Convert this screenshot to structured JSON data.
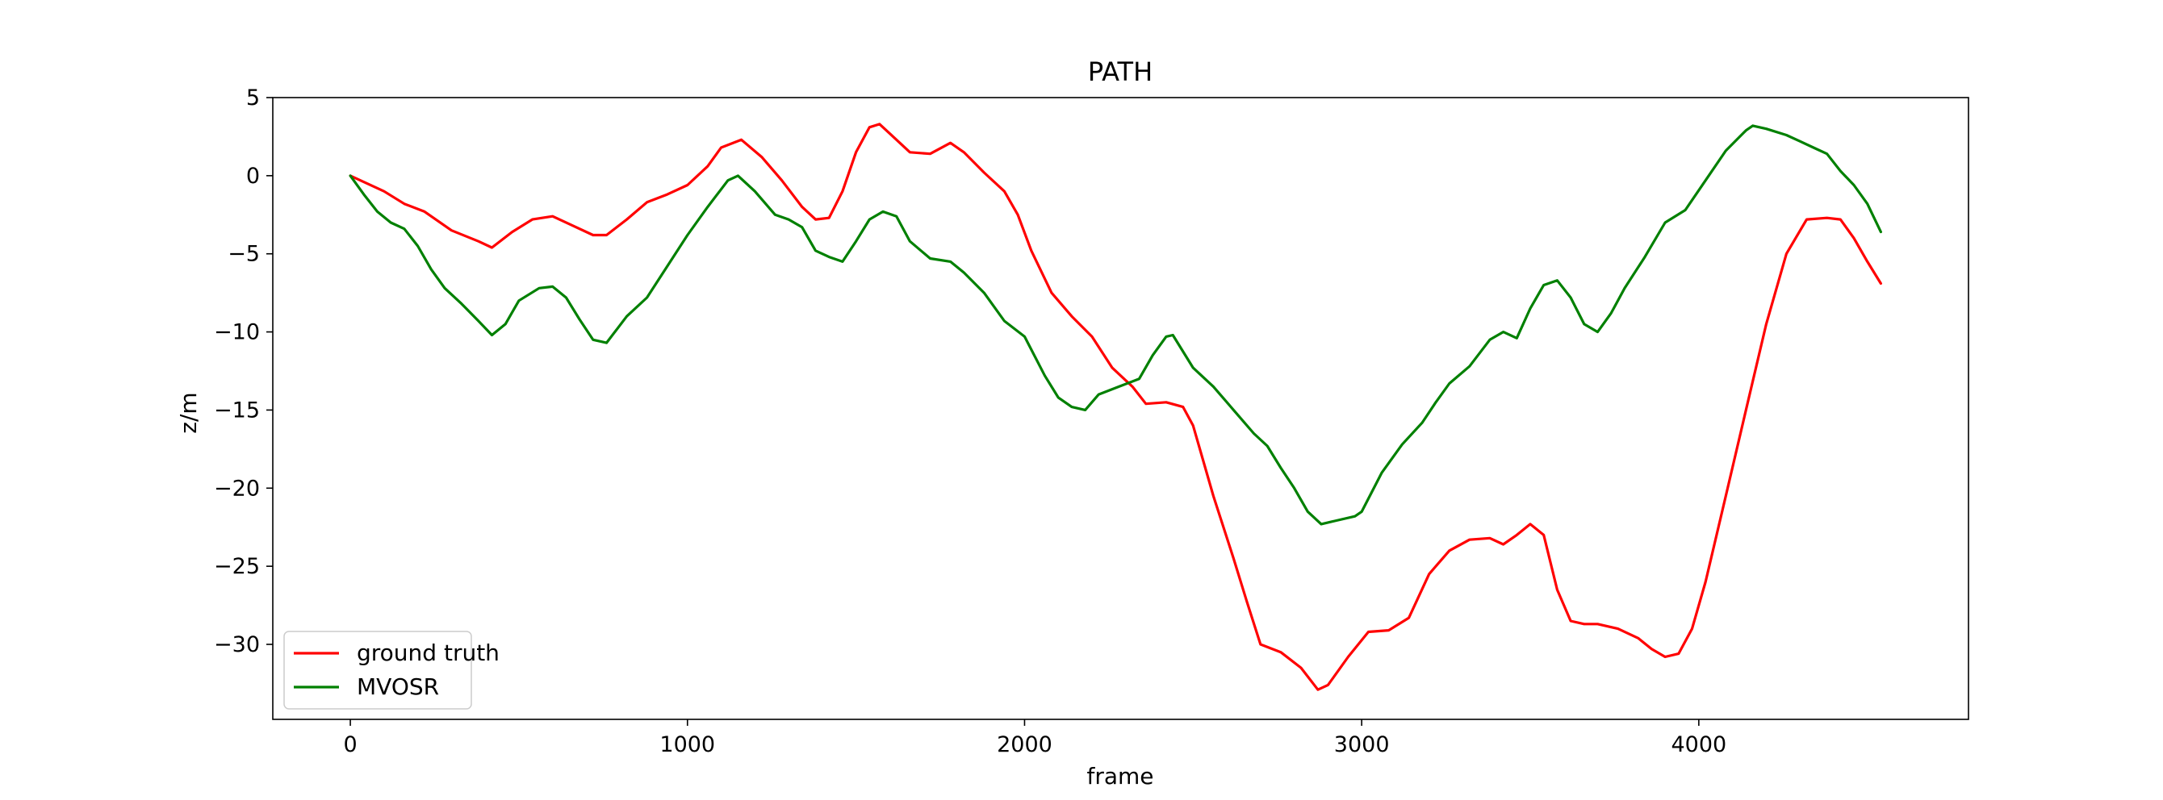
{
  "chart_data": {
    "type": "line",
    "title": "PATH",
    "xlabel": "frame",
    "ylabel": "z/m",
    "xlim": [
      -230,
      4800
    ],
    "ylim": [
      -34.8,
      5
    ],
    "xticks": [
      0,
      1000,
      2000,
      3000,
      4000
    ],
    "yticks": [
      5,
      0,
      -5,
      -10,
      -15,
      -20,
      -25,
      -30
    ],
    "ytick_labels": [
      "5",
      "0",
      "−5",
      "−10",
      "−15",
      "−20",
      "−25",
      "−30"
    ],
    "grid": false,
    "legend_position": "lower-left",
    "series": [
      {
        "name": "ground truth",
        "color": "#ff0000",
        "x": [
          0,
          100,
          160,
          220,
          300,
          380,
          420,
          480,
          540,
          600,
          660,
          720,
          760,
          820,
          880,
          940,
          1000,
          1060,
          1100,
          1160,
          1220,
          1280,
          1340,
          1380,
          1420,
          1460,
          1500,
          1540,
          1570,
          1600,
          1660,
          1720,
          1780,
          1820,
          1880,
          1940,
          1980,
          2020,
          2080,
          2140,
          2200,
          2260,
          2320,
          2360,
          2420,
          2470,
          2500,
          2560,
          2620,
          2660,
          2700,
          2760,
          2820,
          2870,
          2900,
          2960,
          3020,
          3080,
          3140,
          3200,
          3260,
          3320,
          3380,
          3420,
          3460,
          3500,
          3540,
          3580,
          3620,
          3660,
          3700,
          3760,
          3820,
          3860,
          3900,
          3940,
          3980,
          4020,
          4080,
          4140,
          4200,
          4260,
          4320,
          4380,
          4420,
          4460,
          4500,
          4540
        ],
        "y": [
          0,
          -1,
          -1.8,
          -2.3,
          -3.5,
          -4.2,
          -4.6,
          -3.6,
          -2.8,
          -2.6,
          -3.2,
          -3.8,
          -3.8,
          -2.8,
          -1.7,
          -1.2,
          -0.6,
          0.6,
          1.8,
          2.3,
          1.2,
          -0.3,
          -2.0,
          -2.8,
          -2.7,
          -1.0,
          1.5,
          3.1,
          3.3,
          2.7,
          1.5,
          1.4,
          2.1,
          1.5,
          0.2,
          -1.0,
          -2.5,
          -4.8,
          -7.5,
          -9.0,
          -10.3,
          -12.3,
          -13.5,
          -14.6,
          -14.5,
          -14.8,
          -16.0,
          -20.5,
          -24.5,
          -27.3,
          -30.0,
          -30.5,
          -31.5,
          -32.9,
          -32.6,
          -30.8,
          -29.2,
          -29.1,
          -28.3,
          -25.5,
          -24.0,
          -23.3,
          -23.2,
          -23.6,
          -23.0,
          -22.3,
          -23.0,
          -26.5,
          -28.5,
          -28.7,
          -28.7,
          -29.0,
          -29.6,
          -30.3,
          -30.8,
          -30.6,
          -29.0,
          -26.0,
          -20.5,
          -15.0,
          -9.5,
          -5.0,
          -2.8,
          -2.7,
          -2.8,
          -4.0,
          -5.5,
          -6.9
        ]
      },
      {
        "name": "MVOSR",
        "color": "#008000",
        "x": [
          0,
          40,
          80,
          120,
          160,
          200,
          240,
          280,
          330,
          380,
          420,
          460,
          500,
          560,
          600,
          640,
          680,
          720,
          760,
          820,
          880,
          940,
          1000,
          1060,
          1120,
          1150,
          1200,
          1260,
          1300,
          1340,
          1380,
          1420,
          1460,
          1500,
          1540,
          1580,
          1620,
          1660,
          1720,
          1780,
          1820,
          1880,
          1940,
          2000,
          2060,
          2100,
          2140,
          2180,
          2220,
          2280,
          2340,
          2380,
          2420,
          2440,
          2500,
          2560,
          2620,
          2680,
          2720,
          2760,
          2800,
          2840,
          2880,
          2920,
          2980,
          3000,
          3060,
          3120,
          3180,
          3220,
          3260,
          3320,
          3380,
          3420,
          3460,
          3500,
          3540,
          3580,
          3620,
          3660,
          3700,
          3740,
          3780,
          3840,
          3900,
          3960,
          4020,
          4080,
          4140,
          4160,
          4200,
          4260,
          4300,
          4340,
          4380,
          4420,
          4460,
          4500,
          4540
        ],
        "y": [
          0,
          -1.2,
          -2.3,
          -3.0,
          -3.4,
          -4.5,
          -6.0,
          -7.2,
          -8.2,
          -9.3,
          -10.2,
          -9.5,
          -8.0,
          -7.2,
          -7.1,
          -7.8,
          -9.2,
          -10.5,
          -10.7,
          -9.0,
          -7.8,
          -5.8,
          -3.8,
          -2.0,
          -0.3,
          0.0,
          -1.0,
          -2.5,
          -2.8,
          -3.3,
          -4.8,
          -5.2,
          -5.5,
          -4.2,
          -2.8,
          -2.3,
          -2.6,
          -4.2,
          -5.3,
          -5.5,
          -6.2,
          -7.5,
          -9.3,
          -10.3,
          -12.8,
          -14.2,
          -14.8,
          -15.0,
          -14.0,
          -13.5,
          -13.0,
          -11.5,
          -10.3,
          -10.2,
          -12.3,
          -13.5,
          -15.0,
          -16.5,
          -17.3,
          -18.7,
          -20.0,
          -21.5,
          -22.3,
          -22.1,
          -21.8,
          -21.5,
          -19.0,
          -17.2,
          -15.8,
          -14.5,
          -13.3,
          -12.2,
          -10.5,
          -10.0,
          -10.4,
          -8.5,
          -7.0,
          -6.7,
          -7.8,
          -9.5,
          -10.0,
          -8.8,
          -7.2,
          -5.2,
          -3.0,
          -2.2,
          -0.3,
          1.6,
          2.9,
          3.2,
          3.0,
          2.6,
          2.2,
          1.8,
          1.4,
          0.3,
          -0.6,
          -1.8,
          -3.6
        ]
      }
    ]
  }
}
